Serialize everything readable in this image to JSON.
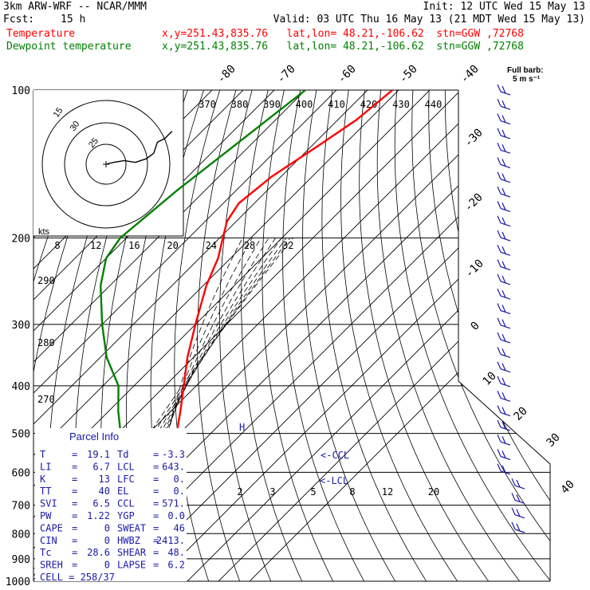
{
  "header": {
    "model": "3km ARW-WRF -- NCAR/MMM",
    "init": "Init: 12 UTC Wed 15 May 13",
    "fcst_label": "Fcst:",
    "fcst_value": "15 h",
    "valid": "Valid: 03 UTC Thu 16 May 13 (21 MDT Wed 15 May 13)",
    "temp_label": "Temperature",
    "temp_info": "x,y=251.43,835.76   lat,lon= 48.21,-106.62  stn=GGW ,72768",
    "dew_label": "Dewpoint temperature",
    "dew_info": "x,y=251.43,835.76   lat,lon= 48.21,-106.62  stn=GGW ,72768",
    "barb_legend_1": "Full barb:",
    "barb_legend_2": "5 m s⁻¹"
  },
  "colors": {
    "temperature": "#ff0000",
    "dewpoint": "#008000",
    "winds": "#1a1aa8",
    "text": "#000000"
  },
  "chart_data": {
    "type": "line",
    "chart": "skew-T log-p",
    "pressure_ticks": [
      "100",
      "200",
      "300",
      "400",
      "500",
      "600",
      "700",
      "800",
      "900",
      "1000"
    ],
    "isotherm_labels": [
      "-80",
      "-70",
      "-60",
      "-50",
      "-40",
      "-30",
      "-20",
      "-10",
      "0",
      "10",
      "20",
      "30",
      "40"
    ],
    "theta_labels_top": [
      "370",
      "380",
      "390",
      "400",
      "410",
      "420",
      "430",
      "440"
    ],
    "theta_labels_left": [
      "290",
      "280",
      "270"
    ],
    "mixing_ratio_labels": [
      "2",
      "3",
      "5",
      "8",
      "12",
      "20"
    ],
    "lcl_label": "<-LCL",
    "ccl_label": "<-CCL",
    "temperature_profile": [
      {
        "p": 100,
        "t": -52
      },
      {
        "p": 115,
        "t": -54
      },
      {
        "p": 130,
        "t": -58
      },
      {
        "p": 150,
        "t": -63
      },
      {
        "p": 170,
        "t": -65
      },
      {
        "p": 185,
        "t": -63
      },
      {
        "p": 200,
        "t": -59
      },
      {
        "p": 220,
        "t": -54
      },
      {
        "p": 250,
        "t": -49
      },
      {
        "p": 300,
        "t": -40
      },
      {
        "p": 350,
        "t": -32
      },
      {
        "p": 400,
        "t": -24
      },
      {
        "p": 450,
        "t": -17
      },
      {
        "p": 500,
        "t": -11
      },
      {
        "p": 550,
        "t": -8
      },
      {
        "p": 600,
        "t": -4
      },
      {
        "p": 650,
        "t": 1
      },
      {
        "p": 700,
        "t": 5
      },
      {
        "p": 750,
        "t": 8
      },
      {
        "p": 800,
        "t": 11
      },
      {
        "p": 850,
        "t": 15
      },
      {
        "p": 880,
        "t": 17
      },
      {
        "p": 910,
        "t": 19.1
      }
    ],
    "dewpoint_profile": [
      {
        "p": 100,
        "t": -80
      },
      {
        "p": 130,
        "t": -85
      },
      {
        "p": 160,
        "t": -89
      },
      {
        "p": 200,
        "t": -92
      },
      {
        "p": 220,
        "t": -90
      },
      {
        "p": 250,
        "t": -83
      },
      {
        "p": 300,
        "t": -70
      },
      {
        "p": 350,
        "t": -58
      },
      {
        "p": 400,
        "t": -45
      },
      {
        "p": 450,
        "t": -37
      },
      {
        "p": 500,
        "t": -29
      },
      {
        "p": 550,
        "t": -18
      },
      {
        "p": 600,
        "t": -25
      },
      {
        "p": 650,
        "t": -26
      },
      {
        "p": 700,
        "t": -19
      },
      {
        "p": 750,
        "t": -17
      },
      {
        "p": 800,
        "t": -12
      },
      {
        "p": 850,
        "t": -8
      },
      {
        "p": 880,
        "t": -7
      },
      {
        "p": 910,
        "t": -3.3
      }
    ],
    "hodograph": {
      "ring_labels": [
        "15",
        "30",
        "25"
      ],
      "units_label": "kts",
      "speed_ticks": [
        "8",
        "12",
        "16",
        "20",
        "24",
        "28",
        "32"
      ],
      "trace": [
        [
          0,
          0
        ],
        [
          2,
          0.5
        ],
        [
          5,
          1
        ],
        [
          8,
          0.5
        ],
        [
          11,
          1.5
        ],
        [
          13,
          3
        ],
        [
          14,
          6
        ],
        [
          16,
          7
        ],
        [
          18,
          9
        ]
      ]
    }
  },
  "parcel_info": {
    "title": "Parcel Info",
    "rows": [
      {
        "k1": "T",
        "v1": "19.1",
        "k2": "Td",
        "v2": "-3.3"
      },
      {
        "k1": "LI",
        "v1": "6.7",
        "k2": "LCL",
        "v2": "643."
      },
      {
        "k1": "K",
        "v1": "13",
        "k2": "LFC",
        "v2": "0."
      },
      {
        "k1": "TT",
        "v1": "40",
        "k2": "EL",
        "v2": "0."
      },
      {
        "k1": "SVI",
        "v1": "6.5",
        "k2": "CCL",
        "v2": "571."
      },
      {
        "k1": "PW",
        "v1": "1.22",
        "k2": "YGP",
        "v2": "0.0"
      },
      {
        "k1": "CAPE",
        "v1": "0",
        "k2": "SWEAT",
        "v2": "46"
      },
      {
        "k1": "CIN",
        "v1": "0",
        "k2": "HWBZ",
        "v2": "2413."
      },
      {
        "k1": "Tc",
        "v1": "28.6",
        "k2": "SHEAR",
        "v2": "48."
      },
      {
        "k1": "SREH",
        "v1": "0",
        "k2": "LAPSE",
        "v2": "6.2"
      }
    ],
    "cell": "CELL = 258/37"
  }
}
